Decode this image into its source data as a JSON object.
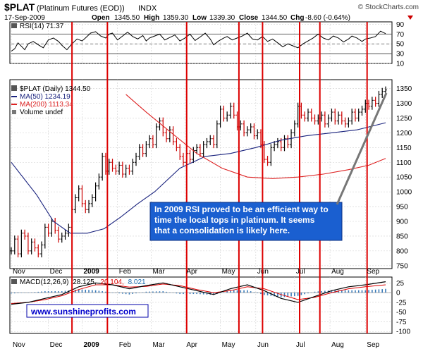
{
  "header": {
    "symbol": "$PLAT",
    "name": "(Platinum Futures (EOD))",
    "exchange": "INDX",
    "copyright": "© StockCharts.com",
    "date": "17-Sep-2009",
    "open_label": "Open",
    "open": "1345.50",
    "high_label": "High",
    "high": "1359.30",
    "low_label": "Low",
    "low": "1339.30",
    "close_label": "Close",
    "close": "1344.50",
    "chg_label": "Chg",
    "chg": "-8.60 (-0.64%)"
  },
  "months": [
    "Nov",
    "Dec",
    "2009",
    "Feb",
    "Mar",
    "Apr",
    "May",
    "Jun",
    "Jul",
    "Aug",
    "Sep"
  ],
  "annotation": "In 2009 RSI proved to be an efficient way to time the local tops in platinum. It seems that a consolidation is likely here.",
  "watermark": "www.sunshineprofits.com",
  "colors": {
    "red_line": "#dd0000",
    "ma50": "#1a237e",
    "ma200": "#dd2222",
    "text_blue": "#0000cc",
    "grid": "#d0d0d0",
    "macd_hist": "#3a7ab8"
  },
  "chart_data": [
    {
      "type": "line",
      "panel": "rsi",
      "title": "RSI(14) 71.37",
      "ylim": [
        10,
        95
      ],
      "yticks": [
        10,
        30,
        50,
        70,
        90
      ],
      "guides": [
        30,
        50,
        70
      ],
      "x": [
        0,
        2,
        4,
        6,
        8,
        10,
        13,
        16,
        19,
        22,
        25,
        28,
        30,
        33,
        36,
        39,
        42,
        44,
        47,
        50,
        53,
        56,
        58,
        60,
        63,
        66,
        69,
        72,
        75,
        78,
        80,
        82,
        85,
        88,
        91,
        94,
        97,
        100,
        103,
        106,
        109,
        112,
        115,
        118,
        120,
        123,
        126,
        128,
        131,
        134,
        137,
        140,
        143,
        146,
        149,
        152,
        155,
        158,
        161,
        164,
        167,
        170,
        173,
        176,
        179,
        182,
        185,
        188,
        191,
        194,
        197,
        200,
        202,
        205,
        208,
        210,
        213,
        216,
        219,
        222
      ],
      "values": [
        35,
        40,
        52,
        45,
        38,
        50,
        55,
        48,
        42,
        58,
        62,
        55,
        47,
        38,
        50,
        60,
        56,
        62,
        72,
        75,
        66,
        62,
        70,
        72,
        58,
        66,
        74,
        65,
        60,
        67,
        56,
        62,
        66,
        70,
        58,
        63,
        68,
        56,
        62,
        70,
        57,
        64,
        72,
        60,
        48,
        56,
        62,
        65,
        58,
        62,
        66,
        72,
        60,
        58,
        65,
        55,
        60,
        52,
        44,
        50,
        46,
        42,
        50,
        56,
        62,
        70,
        62,
        58,
        66,
        62,
        54,
        60,
        66,
        62,
        55,
        60,
        62,
        65,
        76,
        71
      ]
    },
    {
      "type": "line",
      "panel": "price",
      "title": "$PLAT (Daily) 1344.50",
      "ylim": [
        740,
        1380
      ],
      "yticks": [
        750,
        800,
        850,
        900,
        950,
        1000,
        1050,
        1100,
        1150,
        1200,
        1250,
        1300,
        1350
      ],
      "x_axis": "trading days since 2008-10-27",
      "series": [
        {
          "name": "$PLAT (Daily) 1344.50",
          "style": "ohlc",
          "x": [
            0,
            2,
            4,
            6,
            8,
            10,
            12,
            14,
            16,
            18,
            20,
            22,
            24,
            26,
            28,
            30,
            32,
            34,
            36,
            38,
            40,
            42,
            44,
            46,
            48,
            50,
            52,
            54,
            56,
            58,
            60,
            62,
            64,
            66,
            68,
            70,
            72,
            74,
            76,
            78,
            80,
            82,
            84,
            86,
            88,
            90,
            92,
            94,
            96,
            98,
            100,
            102,
            104,
            106,
            108,
            110,
            112,
            114,
            116,
            118,
            120,
            122,
            124,
            126,
            128,
            130,
            132,
            134,
            136,
            138,
            140,
            142,
            144,
            146,
            148,
            150,
            152,
            154,
            156,
            158,
            160,
            162,
            164,
            166,
            168,
            170,
            172,
            174,
            176,
            178,
            180,
            182,
            184,
            186,
            188,
            190,
            192,
            194,
            196,
            198,
            200,
            202,
            204,
            206,
            208,
            210,
            212,
            214,
            216,
            218,
            220,
            222
          ],
          "values": [
            800,
            840,
            790,
            860,
            850,
            800,
            830,
            810,
            790,
            820,
            880,
            860,
            900,
            870,
            840,
            850,
            860,
            880,
            940,
            980,
            1010,
            960,
            940,
            960,
            980,
            1020,
            1050,
            1120,
            1070,
            1100,
            1080,
            1070,
            1090,
            1060,
            1080,
            1070,
            1100,
            1120,
            1150,
            1130,
            1160,
            1180,
            1160,
            1220,
            1240,
            1200,
            1180,
            1210,
            1170,
            1150,
            1120,
            1100,
            1130,
            1110,
            1140,
            1150,
            1130,
            1160,
            1170,
            1180,
            1160,
            1230,
            1280,
            1250,
            1260,
            1290,
            1260,
            1220,
            1230,
            1200,
            1210,
            1220,
            1190,
            1200,
            1160,
            1110,
            1100,
            1150,
            1160,
            1170,
            1150,
            1180,
            1160,
            1200,
            1230,
            1290,
            1260,
            1250,
            1270,
            1250,
            1240,
            1250,
            1260,
            1230,
            1250,
            1270,
            1240,
            1260,
            1240,
            1230,
            1240,
            1270,
            1250,
            1270,
            1280,
            1300,
            1290,
            1310,
            1300,
            1330,
            1340,
            1345
          ]
        },
        {
          "name": "MA(50) 1234.19",
          "x": [
            0,
            15,
            25,
            35,
            45,
            55,
            65,
            75,
            85,
            100,
            115,
            130,
            145,
            160,
            175,
            190,
            205,
            222
          ],
          "values": [
            1100,
            990,
            900,
            860,
            860,
            875,
            915,
            960,
            1000,
            1080,
            1120,
            1130,
            1150,
            1175,
            1190,
            1200,
            1210,
            1234
          ]
        },
        {
          "name": "MA(200) 1113.34",
          "x": [
            68,
            80,
            95,
            110,
            125,
            140,
            155,
            170,
            185,
            200,
            212,
            222
          ],
          "values": [
            1330,
            1270,
            1200,
            1130,
            1080,
            1050,
            1045,
            1050,
            1060,
            1075,
            1090,
            1113
          ]
        }
      ],
      "legend": [
        "$PLAT (Daily) 1344.50",
        "MA(50) 1234.19",
        "MA(200) 1113.34",
        "Volume undef"
      ]
    },
    {
      "type": "line",
      "panel": "macd",
      "title": "MACD(12,26,9) 28.125, 20.104, 8.021",
      "title_parts": [
        "MACD(12,26,9)",
        "28.125,",
        "20.104,",
        "8.021"
      ],
      "ylim": [
        -105,
        40
      ],
      "yticks": [
        25,
        0,
        -25,
        -50,
        -75,
        -100
      ],
      "series": [
        {
          "name": "MACD",
          "x": [
            0,
            10,
            20,
            30,
            40,
            50,
            60,
            70,
            80,
            90,
            100,
            110,
            120,
            130,
            140,
            150,
            160,
            170,
            180,
            190,
            200,
            210,
            222
          ],
          "values": [
            -30,
            -25,
            -15,
            -5,
            15,
            25,
            20,
            10,
            18,
            25,
            15,
            5,
            -5,
            10,
            20,
            5,
            -15,
            -25,
            -10,
            5,
            15,
            20,
            28
          ]
        },
        {
          "name": "Signal",
          "x": [
            0,
            10,
            20,
            30,
            40,
            50,
            60,
            70,
            80,
            90,
            100,
            110,
            120,
            130,
            140,
            150,
            160,
            170,
            180,
            190,
            200,
            210,
            222
          ],
          "values": [
            -28,
            -25,
            -18,
            -8,
            8,
            20,
            20,
            14,
            16,
            22,
            18,
            8,
            0,
            5,
            15,
            10,
            -5,
            -18,
            -12,
            0,
            10,
            15,
            20
          ]
        },
        {
          "name": "Histogram",
          "style": "bars"
        }
      ]
    }
  ]
}
